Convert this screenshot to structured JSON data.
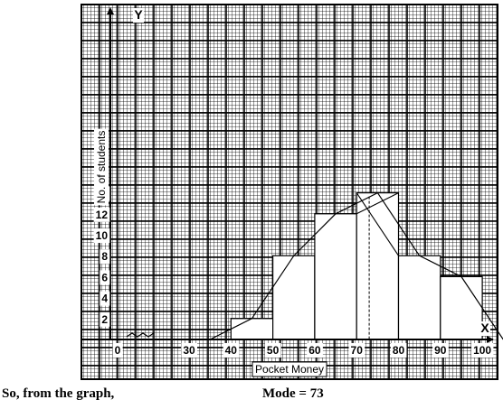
{
  "chart_data": {
    "type": "bar",
    "subtype": "histogram-with-mode-construction",
    "xlabel": "Pocket Money",
    "ylabel": "No. of students",
    "x_axis_letter": "X",
    "y_axis_letter": "Y",
    "x_ticks": [
      "0",
      "30",
      "40",
      "50",
      "60",
      "70",
      "80",
      "90",
      "100"
    ],
    "y_ticks": [
      "2",
      "4",
      "6",
      "8",
      "10",
      "12",
      "14"
    ],
    "xlim": [
      30,
      110
    ],
    "ylim": [
      0,
      14
    ],
    "grid": true,
    "bins": [
      {
        "from": 40,
        "to": 50,
        "value": 2
      },
      {
        "from": 50,
        "to": 60,
        "value": 8
      },
      {
        "from": 60,
        "to": 70,
        "value": 12
      },
      {
        "from": 70,
        "to": 80,
        "value": 14
      },
      {
        "from": 80,
        "to": 90,
        "value": 8
      },
      {
        "from": 90,
        "to": 100,
        "value": 6
      }
    ],
    "frequency_polygon": [
      [
        35,
        0
      ],
      [
        45,
        2
      ],
      [
        55,
        8
      ],
      [
        65,
        12
      ],
      [
        75,
        14
      ],
      [
        85,
        8
      ],
      [
        95,
        6
      ],
      [
        105,
        0
      ]
    ],
    "mode": 73
  },
  "caption": {
    "left": "So, from the graph,",
    "right": "Mode  =  73"
  }
}
